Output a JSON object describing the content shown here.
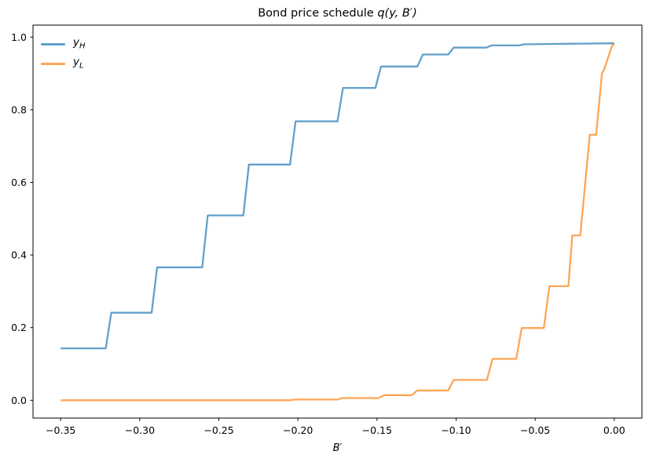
{
  "chart_data": {
    "type": "line",
    "title_prefix": "Bond price schedule ",
    "title_math": "q(y, B′)",
    "xlabel": "B′",
    "grid": false,
    "legend_position": "upper left",
    "xlim": [
      -0.3675,
      0.0175
    ],
    "ylim": [
      -0.049,
      1.033
    ],
    "x_ticks": {
      "values": [
        -0.35,
        -0.3,
        -0.25,
        -0.2,
        -0.15,
        -0.1,
        -0.05,
        0.0
      ],
      "labels": [
        "−0.35",
        "−0.30",
        "−0.25",
        "−0.20",
        "−0.15",
        "−0.10",
        "−0.05",
        "0.00"
      ]
    },
    "y_ticks": {
      "values": [
        0.0,
        0.2,
        0.4,
        0.6,
        0.8,
        1.0
      ],
      "labels": [
        "0.0",
        "0.2",
        "0.4",
        "0.6",
        "0.8",
        "1.0"
      ]
    },
    "legend": [
      {
        "base": "y",
        "sub": "H",
        "color": "#1f77b4"
      },
      {
        "base": "y",
        "sub": "L",
        "color": "#ff7f0e"
      }
    ],
    "series": [
      {
        "name": "y_H",
        "color": "#1f77b4",
        "opacity": 0.7,
        "points": [
          [
            -0.35,
            0.143
          ],
          [
            -0.3215,
            0.143
          ],
          [
            -0.318,
            0.241
          ],
          [
            -0.2925,
            0.241
          ],
          [
            -0.289,
            0.366
          ],
          [
            -0.2605,
            0.366
          ],
          [
            -0.257,
            0.509
          ],
          [
            -0.2345,
            0.509
          ],
          [
            -0.231,
            0.649
          ],
          [
            -0.205,
            0.649
          ],
          [
            -0.2015,
            0.768
          ],
          [
            -0.175,
            0.768
          ],
          [
            -0.1715,
            0.86
          ],
          [
            -0.151,
            0.86
          ],
          [
            -0.1475,
            0.919
          ],
          [
            -0.1245,
            0.919
          ],
          [
            -0.121,
            0.952
          ],
          [
            -0.105,
            0.952
          ],
          [
            -0.1015,
            0.971
          ],
          [
            -0.081,
            0.971
          ],
          [
            -0.0775,
            0.977
          ],
          [
            -0.0605,
            0.977
          ],
          [
            -0.057,
            0.98
          ],
          [
            -0.03,
            0.9815
          ],
          [
            0.0,
            0.983
          ]
        ]
      },
      {
        "name": "y_L",
        "color": "#ff7f0e",
        "opacity": 0.7,
        "points": [
          [
            -0.35,
            0.0
          ],
          [
            -0.205,
            0.0
          ],
          [
            -0.202,
            0.002
          ],
          [
            -0.175,
            0.002
          ],
          [
            -0.172,
            0.006
          ],
          [
            -0.149,
            0.006
          ],
          [
            -0.1455,
            0.014
          ],
          [
            -0.128,
            0.014
          ],
          [
            -0.1245,
            0.027
          ],
          [
            -0.105,
            0.027
          ],
          [
            -0.1015,
            0.056
          ],
          [
            -0.0805,
            0.056
          ],
          [
            -0.077,
            0.114
          ],
          [
            -0.062,
            0.114
          ],
          [
            -0.0585,
            0.199
          ],
          [
            -0.0445,
            0.199
          ],
          [
            -0.041,
            0.314
          ],
          [
            -0.029,
            0.314
          ],
          [
            -0.0265,
            0.454
          ],
          [
            -0.0215,
            0.454
          ],
          [
            -0.0185,
            0.59
          ],
          [
            -0.0155,
            0.731
          ],
          [
            -0.0114,
            0.731
          ],
          [
            -0.0078,
            0.9
          ],
          [
            -0.0065,
            0.91
          ],
          [
            -0.0015,
            0.975
          ],
          [
            0.0,
            0.982
          ]
        ]
      }
    ]
  }
}
